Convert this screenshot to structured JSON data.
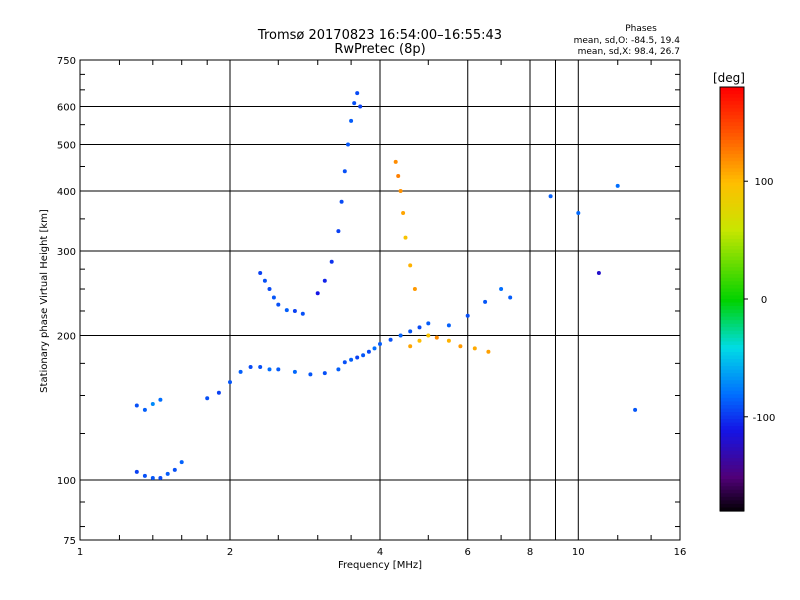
{
  "chart_data": {
    "type": "scatter",
    "title": "Tromsø 20170823 16:54:00–16:55:43",
    "subtitle": "RwPretec (8p)",
    "xlabel": "Frequency [MHz]",
    "ylabel": "Stationary phase Virtual Height [km]",
    "xscale": "log",
    "yscale": "log",
    "xlim": [
      1,
      16
    ],
    "ylim": [
      75,
      750
    ],
    "grid": true,
    "x_ticks": [
      1,
      2,
      4,
      6,
      8,
      9,
      10,
      16
    ],
    "x_tick_labels": [
      "1",
      "2",
      "4",
      "6",
      "8",
      "10",
      "16"
    ],
    "x_tick_label_values": [
      1,
      2,
      4,
      6,
      8,
      10,
      16
    ],
    "x_minor_ticks": [
      7,
      9
    ],
    "y_ticks": [
      75,
      100,
      200,
      300,
      400,
      500,
      600,
      750
    ],
    "y_tick_labels": [
      "75",
      "100",
      "200",
      "300",
      "400",
      "500",
      "600",
      "750"
    ],
    "phases": {
      "title": "Phases",
      "line_o": "mean, sd,O: -84.5, 19.4",
      "line_x": "mean, sd,X:  98.4, 26.7"
    },
    "colorbar": {
      "label": "[deg]",
      "range": [
        -180,
        180
      ],
      "ticks": [
        100,
        0,
        -100
      ],
      "tick_labels": [
        "100",
        "0",
        "-100"
      ]
    },
    "series": [
      {
        "x": [
          1.3,
          1.35,
          1.4,
          1.45,
          1.5,
          1.55,
          1.6
        ],
        "y": [
          104,
          102,
          101,
          101,
          103,
          105,
          109
        ],
        "phase": [
          -95,
          -90,
          -88,
          -92,
          -86,
          -90,
          -84
        ]
      },
      {
        "x": [
          1.3,
          1.35,
          1.4,
          1.45
        ],
        "y": [
          143,
          140,
          144,
          147
        ],
        "phase": [
          -90,
          -85,
          -70,
          -80
        ]
      },
      {
        "x": [
          1.8,
          1.9,
          2.0,
          2.1,
          2.2,
          2.3,
          2.4,
          2.5,
          2.7,
          2.9,
          3.1,
          3.3
        ],
        "y": [
          148,
          152,
          160,
          168,
          172,
          172,
          170,
          170,
          168,
          166,
          167,
          170
        ],
        "phase": [
          -90,
          -95,
          -88,
          -85,
          -92,
          -90,
          -80,
          -86,
          -82,
          -88,
          -90,
          -85
        ]
      },
      {
        "x": [
          2.3,
          2.35,
          2.4,
          2.45,
          2.5,
          2.6,
          2.7,
          2.8
        ],
        "y": [
          270,
          260,
          250,
          240,
          232,
          226,
          225,
          222
        ],
        "phase": [
          -95,
          -90,
          -92,
          -88,
          -90,
          -85,
          -95,
          -90
        ]
      },
      {
        "x": [
          3.0,
          3.1,
          3.2,
          3.3,
          3.35,
          3.4,
          3.45,
          3.5,
          3.55,
          3.6,
          3.65
        ],
        "y": [
          245,
          260,
          285,
          330,
          380,
          440,
          500,
          560,
          610,
          640,
          600
        ],
        "phase": [
          -110,
          -105,
          -100,
          -95,
          -92,
          -90,
          -88,
          -86,
          -90,
          -92,
          -95
        ]
      },
      {
        "x": [
          3.4,
          3.5,
          3.6,
          3.7,
          3.8,
          3.9,
          4.0,
          4.2,
          4.4,
          4.6,
          4.8,
          5.0
        ],
        "y": [
          176,
          178,
          180,
          182,
          185,
          188,
          192,
          196,
          200,
          204,
          208,
          212
        ],
        "phase": [
          -90,
          -85,
          -95,
          -88,
          -92,
          -80,
          -86,
          -90,
          -84,
          -88,
          -92,
          -86
        ]
      },
      {
        "x": [
          4.3,
          4.35,
          4.4,
          4.45,
          4.5,
          4.6,
          4.7
        ],
        "y": [
          460,
          430,
          400,
          360,
          320,
          280,
          250
        ],
        "phase": [
          120,
          125,
          118,
          110,
          95,
          105,
          115
        ]
      },
      {
        "x": [
          4.6,
          4.8,
          5.0,
          5.2,
          5.5,
          5.8,
          6.2,
          6.6
        ],
        "y": [
          190,
          195,
          200,
          198,
          195,
          190,
          188,
          185
        ],
        "phase": [
          110,
          100,
          95,
          120,
          105,
          115,
          108,
          112
        ]
      },
      {
        "x": [
          5.5,
          6.0,
          6.5,
          7.0,
          7.3
        ],
        "y": [
          210,
          220,
          235,
          250,
          240
        ],
        "phase": [
          -85,
          -90,
          -88,
          -80,
          -86
        ]
      },
      {
        "x": [
          8.8,
          10.0,
          11.0,
          12.0,
          13.0
        ],
        "y": [
          390,
          360,
          270,
          410,
          140
        ],
        "phase": [
          -85,
          -82,
          -120,
          -80,
          -88
        ]
      }
    ]
  }
}
